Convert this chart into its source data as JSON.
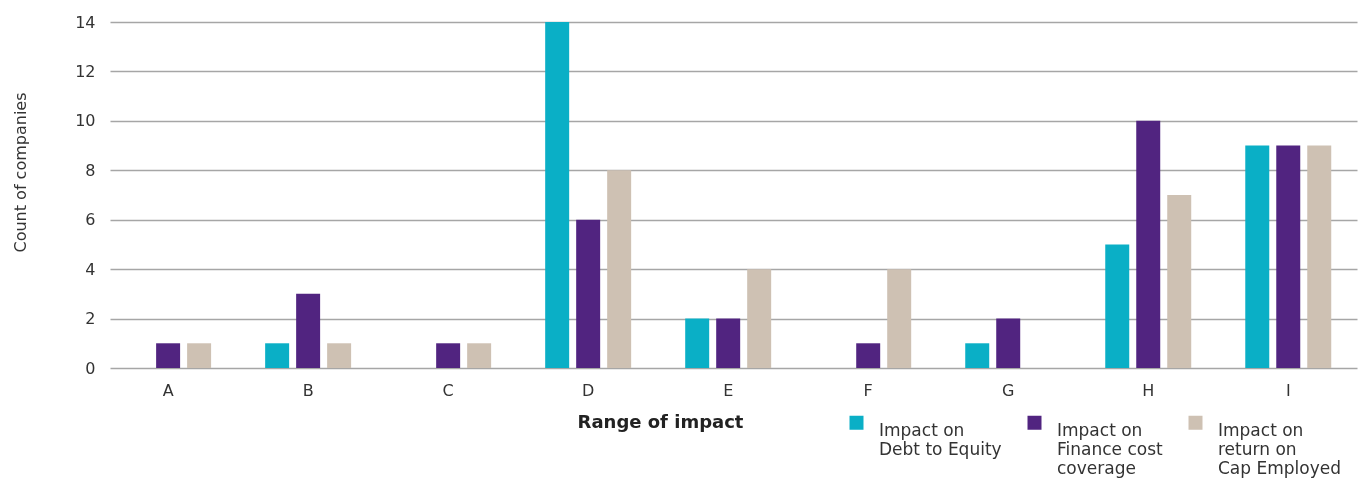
{
  "chart_data": {
    "type": "bar",
    "xlabel": "Range of impact",
    "ylabel": "Count of companies",
    "categories": [
      "A",
      "B",
      "C",
      "D",
      "E",
      "F",
      "G",
      "H",
      "I"
    ],
    "series": [
      {
        "name": "Impact on Debt to Equity",
        "color": "#0aafc6",
        "values": [
          0,
          1,
          0,
          14,
          2,
          0,
          1,
          5,
          9
        ]
      },
      {
        "name": "Impact on Finance cost coverage",
        "color": "#512480",
        "values": [
          1,
          3,
          1,
          6,
          2,
          1,
          2,
          10,
          9
        ]
      },
      {
        "name": "Impact on return on Cap Employed",
        "color": "#cec1b3",
        "values": [
          1,
          1,
          1,
          8,
          4,
          4,
          0,
          7,
          9
        ]
      }
    ],
    "ylim": [
      0,
      14
    ],
    "yticks": [
      0,
      2,
      4,
      6,
      8,
      10,
      12,
      14
    ],
    "grid": "y",
    "legend": "bottom right"
  }
}
